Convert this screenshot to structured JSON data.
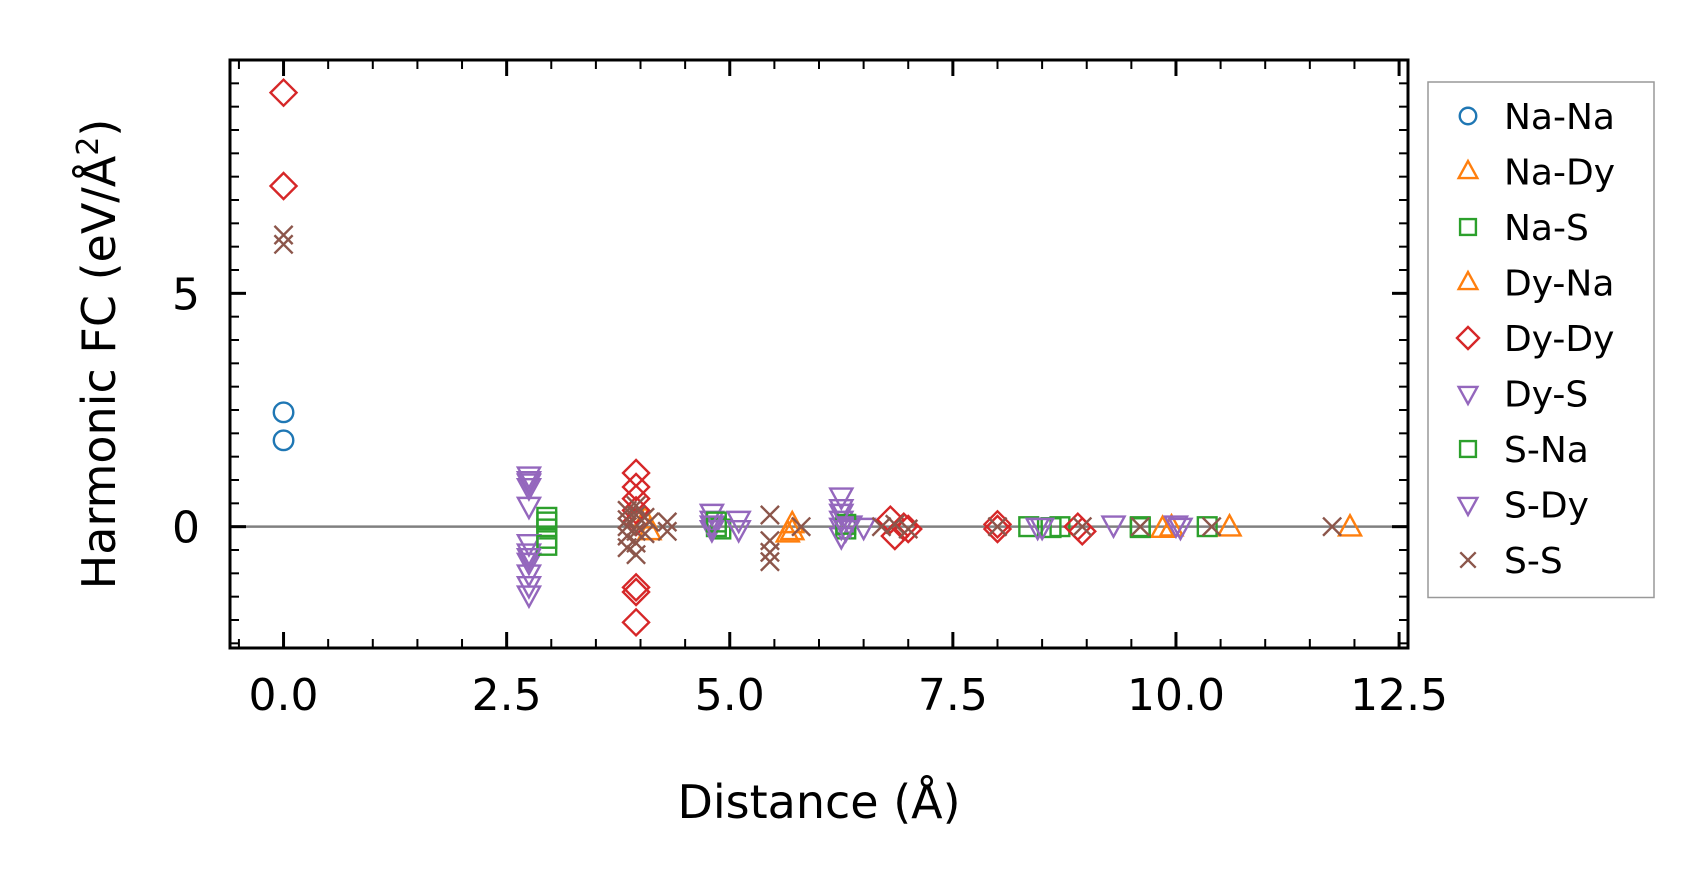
{
  "chart_data": {
    "type": "scatter",
    "xlabel": "Distance (Å)",
    "ylabel_text": "Harmonic FC (eV/Å",
    "ylabel_sup": "2",
    "ylabel_close": ")",
    "xlim": [
      -0.6,
      12.6
    ],
    "ylim": [
      -2.6,
      10.0
    ],
    "x_ticks": [
      0.0,
      2.5,
      5.0,
      7.5,
      10.0,
      12.5
    ],
    "x_tick_labels": [
      "0.0",
      "2.5",
      "5.0",
      "7.5",
      "10.0",
      "12.5"
    ],
    "y_ticks": [
      0,
      5
    ],
    "y_tick_labels": [
      "0",
      "5"
    ],
    "zero_line": true,
    "legend_position": "right-outside",
    "series": [
      {
        "name": "Na-Na",
        "marker": "circle",
        "color": "#1f77b4",
        "points": [
          [
            0.0,
            2.45
          ],
          [
            0.0,
            1.85
          ]
        ]
      },
      {
        "name": "Na-Dy",
        "marker": "triangle-up",
        "color": "#ff7f0e",
        "points": [
          [
            5.65,
            -0.15
          ],
          [
            5.7,
            0.05
          ],
          [
            9.85,
            -0.05
          ],
          [
            10.6,
            -0.02
          ]
        ]
      },
      {
        "name": "Na-S",
        "marker": "square",
        "color": "#2ca02c",
        "points": [
          [
            2.95,
            0.1
          ],
          [
            2.95,
            -0.05
          ],
          [
            2.95,
            -0.25
          ],
          [
            4.85,
            0.0
          ],
          [
            4.9,
            -0.05
          ],
          [
            6.3,
            -0.05
          ],
          [
            8.35,
            0.0
          ],
          [
            8.7,
            0.0
          ],
          [
            9.6,
            0.0
          ],
          [
            10.35,
            0.0
          ]
        ]
      },
      {
        "name": "Dy-Na",
        "marker": "triangle-up",
        "color": "#ff7f0e",
        "points": [
          [
            4.1,
            -0.1
          ],
          [
            4.05,
            0.15
          ],
          [
            5.7,
            -0.1
          ],
          [
            9.95,
            -0.02
          ],
          [
            11.95,
            -0.02
          ]
        ]
      },
      {
        "name": "Dy-Dy",
        "marker": "diamond",
        "color": "#d62728",
        "points": [
          [
            0.0,
            9.3
          ],
          [
            0.0,
            7.3
          ],
          [
            3.95,
            1.15
          ],
          [
            3.95,
            0.85
          ],
          [
            3.95,
            0.6
          ],
          [
            3.95,
            0.35
          ],
          [
            3.95,
            0.1
          ],
          [
            3.95,
            -1.3
          ],
          [
            3.95,
            -1.4
          ],
          [
            3.95,
            -2.05
          ],
          [
            6.8,
            0.15
          ],
          [
            6.85,
            -0.2
          ],
          [
            6.95,
            0.0
          ],
          [
            7.0,
            -0.05
          ],
          [
            8.0,
            0.05
          ],
          [
            8.0,
            -0.05
          ],
          [
            8.9,
            0.0
          ],
          [
            8.95,
            -0.1
          ]
        ]
      },
      {
        "name": "Dy-S",
        "marker": "triangle-down",
        "color": "#9467bd",
        "points": [
          [
            2.75,
            1.1
          ],
          [
            2.75,
            0.95
          ],
          [
            2.75,
            0.85
          ],
          [
            2.75,
            0.45
          ],
          [
            2.75,
            -0.35
          ],
          [
            2.75,
            -0.55
          ],
          [
            2.75,
            -0.75
          ],
          [
            2.75,
            -1.0
          ],
          [
            2.75,
            -1.45
          ],
          [
            4.8,
            0.3
          ],
          [
            4.8,
            0.15
          ],
          [
            4.8,
            -0.05
          ],
          [
            6.25,
            0.65
          ],
          [
            6.25,
            0.4
          ],
          [
            6.25,
            0.15
          ],
          [
            6.25,
            0.0
          ],
          [
            6.25,
            -0.2
          ],
          [
            6.35,
            0.05
          ],
          [
            6.5,
            0.0
          ],
          [
            8.45,
            0.0
          ],
          [
            9.3,
            0.05
          ],
          [
            10.05,
            0.0
          ]
        ]
      },
      {
        "name": "S-Na",
        "marker": "square",
        "color": "#2ca02c",
        "points": [
          [
            2.95,
            0.2
          ],
          [
            2.95,
            -0.4
          ],
          [
            4.85,
            0.1
          ],
          [
            6.3,
            0.05
          ],
          [
            8.6,
            -0.02
          ],
          [
            9.6,
            -0.02
          ]
        ]
      },
      {
        "name": "S-Dy",
        "marker": "triangle-down",
        "color": "#9467bd",
        "points": [
          [
            2.75,
            1.0
          ],
          [
            2.75,
            -0.65
          ],
          [
            2.75,
            -1.25
          ],
          [
            4.8,
            0.05
          ],
          [
            5.1,
            0.15
          ],
          [
            5.1,
            -0.05
          ],
          [
            6.25,
            0.3
          ],
          [
            6.3,
            -0.05
          ],
          [
            8.5,
            0.0
          ],
          [
            10.0,
            0.05
          ]
        ]
      },
      {
        "name": "S-S",
        "marker": "x",
        "color": "#8c564b",
        "points": [
          [
            0.0,
            6.25
          ],
          [
            0.0,
            6.05
          ],
          [
            3.85,
            0.35
          ],
          [
            3.85,
            0.15
          ],
          [
            3.85,
            0.0
          ],
          [
            3.85,
            -0.2
          ],
          [
            3.85,
            -0.45
          ],
          [
            3.95,
            0.45
          ],
          [
            3.95,
            0.25
          ],
          [
            3.95,
            -0.1
          ],
          [
            3.95,
            -0.35
          ],
          [
            3.95,
            -0.6
          ],
          [
            4.05,
            0.2
          ],
          [
            4.05,
            -0.15
          ],
          [
            4.1,
            0.1
          ],
          [
            4.3,
            0.1
          ],
          [
            4.3,
            -0.1
          ],
          [
            5.45,
            0.25
          ],
          [
            5.45,
            -0.3
          ],
          [
            5.45,
            -0.55
          ],
          [
            5.45,
            -0.75
          ],
          [
            5.8,
            0.0
          ],
          [
            6.7,
            0.0
          ],
          [
            6.85,
            0.05
          ],
          [
            7.0,
            -0.05
          ],
          [
            8.0,
            0.0
          ],
          [
            8.95,
            0.0
          ],
          [
            9.6,
            0.0
          ],
          [
            10.4,
            0.0
          ],
          [
            11.75,
            0.0
          ]
        ]
      }
    ]
  }
}
